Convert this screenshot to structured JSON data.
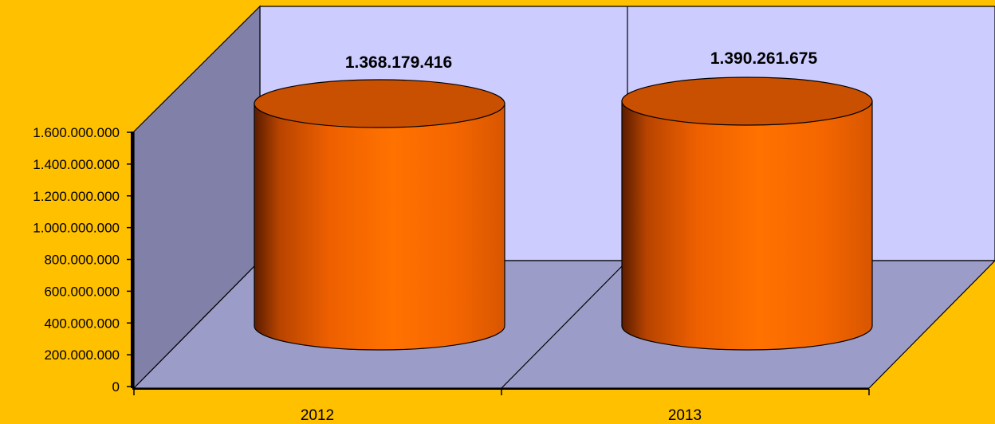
{
  "chart_data": {
    "type": "bar",
    "style": "3d-cylinder",
    "categories": [
      "2012",
      "2013"
    ],
    "values": [
      1368179416,
      1390261675
    ],
    "data_labels": [
      "1.368.179.416",
      "1.390.261.675"
    ],
    "ylim": [
      0,
      1600000000
    ],
    "yticks": [
      0,
      200000000,
      400000000,
      600000000,
      800000000,
      1000000000,
      1200000000,
      1400000000,
      1600000000
    ],
    "ytick_labels": [
      "0",
      "200.000.000",
      "400.000.000",
      "600.000.000",
      "800.000.000",
      "1.000.000.000",
      "1.200.000.000",
      "1.400.000.000",
      "1.600.000.000"
    ],
    "title": "",
    "xlabel": "",
    "ylabel": "",
    "grid": false,
    "legend": "none"
  },
  "colors": {
    "background": "#FFC000",
    "back_wall": "#CCCCFF",
    "side_wall": "#8080A8",
    "floor": "#9C9CC8",
    "bar": "#FF6A00",
    "bar_top": "#C95000"
  }
}
